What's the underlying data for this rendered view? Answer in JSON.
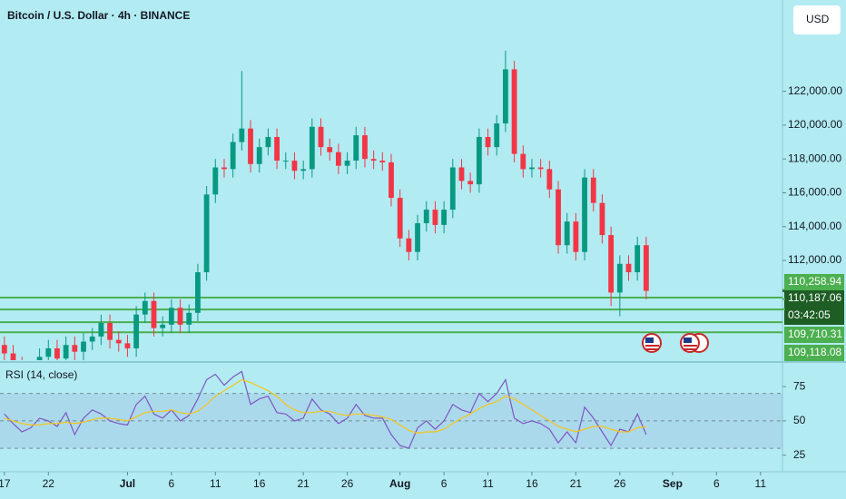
{
  "header": {
    "title": "Bitcoin / U.S. Dollar · 4h · BINANCE",
    "currency_button": "USD"
  },
  "chart_data": [
    {
      "type": "candlestick",
      "x": [
        0,
        1,
        2,
        3,
        4,
        5,
        6,
        7,
        8,
        9,
        10,
        11,
        12,
        13,
        14,
        15,
        16,
        17,
        18,
        19,
        20,
        21,
        22,
        23,
        24,
        25,
        26,
        27,
        28,
        29,
        30,
        31,
        32,
        33,
        34,
        35,
        36,
        37,
        38,
        39,
        40,
        41,
        42,
        43,
        44,
        45,
        46,
        47,
        48,
        49,
        50,
        51,
        52,
        53,
        54,
        55,
        56,
        57,
        58,
        59,
        60,
        61,
        62,
        63,
        64,
        65,
        66,
        67,
        68,
        69,
        70,
        71,
        72,
        73
      ],
      "open": [
        107000,
        106500,
        105800,
        105500,
        105600,
        106300,
        106800,
        106200,
        107000,
        106600,
        107200,
        107500,
        108300,
        107300,
        107100,
        106800,
        108800,
        109600,
        108000,
        108200,
        109200,
        108200,
        108900,
        111300,
        115900,
        117500,
        117400,
        119000,
        119800,
        117700,
        118700,
        119300,
        117900,
        117900,
        117300,
        117400,
        119900,
        118700,
        118400,
        117600,
        117900,
        119400,
        118000,
        117900,
        117800,
        115700,
        113300,
        112500,
        114200,
        115000,
        114100,
        115000,
        117500,
        116700,
        116500,
        119300,
        118700,
        120100,
        123300,
        118300,
        117400,
        117500,
        117400,
        116200,
        112900,
        114300,
        112500,
        116900,
        115400,
        113500,
        110100,
        111800,
        111300,
        112900
      ],
      "high": [
        107500,
        107000,
        106300,
        106100,
        106800,
        107300,
        107300,
        107500,
        107500,
        107700,
        108000,
        108800,
        108800,
        107800,
        107600,
        109300,
        110100,
        110100,
        108700,
        109700,
        109700,
        109400,
        111800,
        116400,
        118000,
        118000,
        119500,
        123200,
        120300,
        119200,
        119800,
        119800,
        118400,
        118400,
        117900,
        120400,
        120400,
        119200,
        118900,
        118400,
        119900,
        119900,
        118500,
        118400,
        118300,
        116200,
        113800,
        114700,
        115500,
        115500,
        115500,
        118000,
        118000,
        117200,
        119800,
        119800,
        120600,
        124400,
        123800,
        118800,
        118000,
        118000,
        117900,
        116700,
        114800,
        114800,
        117400,
        117400,
        115900,
        114000,
        112300,
        112300,
        113400,
        113400
      ],
      "low": [
        106000,
        105300,
        105000,
        105000,
        105100,
        105800,
        105700,
        105700,
        106100,
        106100,
        106700,
        107000,
        106800,
        106600,
        106300,
        106300,
        108300,
        107500,
        107500,
        107700,
        107700,
        107700,
        108400,
        110800,
        115400,
        116900,
        116900,
        118500,
        117200,
        117200,
        118200,
        117400,
        117400,
        116800,
        116800,
        116900,
        118200,
        117900,
        117100,
        117100,
        117400,
        117500,
        117400,
        117300,
        115200,
        112800,
        112000,
        112000,
        113700,
        113600,
        113600,
        114500,
        116200,
        116000,
        116000,
        118200,
        118200,
        119600,
        117800,
        116900,
        116900,
        116900,
        115700,
        112400,
        112400,
        112000,
        112000,
        114900,
        113000,
        109300,
        108700,
        110800,
        110800,
        109700
      ],
      "close": [
        106500,
        105800,
        105500,
        105600,
        106300,
        106800,
        106200,
        107000,
        106600,
        107200,
        107500,
        108300,
        107300,
        107100,
        106800,
        108800,
        109600,
        108000,
        108200,
        109200,
        108200,
        108900,
        111300,
        115900,
        117500,
        117400,
        119000,
        119800,
        117700,
        118700,
        119300,
        117900,
        117900,
        117300,
        117400,
        119900,
        118700,
        118400,
        117600,
        117900,
        119400,
        118000,
        117900,
        117800,
        115700,
        113300,
        112500,
        114200,
        115000,
        114100,
        115000,
        117500,
        116700,
        116500,
        119300,
        118700,
        120100,
        123300,
        118300,
        117400,
        117500,
        117400,
        116200,
        112900,
        114300,
        112500,
        116900,
        115400,
        113500,
        110100,
        111800,
        111300,
        112900,
        110200
      ],
      "up_color": "#089981",
      "down_color": "#f23645",
      "xlim": [
        -0.5,
        88.5
      ],
      "xticks": [
        {
          "value": 0,
          "label": "17"
        },
        {
          "value": 5,
          "label": "22"
        },
        {
          "value": 14,
          "label": "Jul"
        },
        {
          "value": 19,
          "label": "6"
        },
        {
          "value": 24,
          "label": "11"
        },
        {
          "value": 29,
          "label": "16"
        },
        {
          "value": 34,
          "label": "21"
        },
        {
          "value": 39,
          "label": "26"
        },
        {
          "value": 45,
          "label": "Aug"
        },
        {
          "value": 50,
          "label": "6"
        },
        {
          "value": 55,
          "label": "11"
        },
        {
          "value": 60,
          "label": "16"
        },
        {
          "value": 65,
          "label": "21"
        },
        {
          "value": 70,
          "label": "26"
        },
        {
          "value": 76,
          "label": "Sep"
        },
        {
          "value": 81,
          "label": "6"
        },
        {
          "value": 86,
          "label": "11"
        }
      ],
      "ylim": [
        106100,
        127400
      ],
      "yticks": [
        {
          "value": 112000,
          "label": "112,000.00"
        },
        {
          "value": 114000,
          "label": "114,000.00"
        },
        {
          "value": 116000,
          "label": "116,000.00"
        },
        {
          "value": 118000,
          "label": "118,000.00"
        },
        {
          "value": 120000,
          "label": "120,000.00"
        },
        {
          "value": 122000,
          "label": "122,000.00"
        }
      ],
      "hlines": {
        "values": [
          109800,
          109100,
          108350,
          107750
        ],
        "color": "#4caf50"
      },
      "price_tags": [
        {
          "value": 110258.94,
          "label": "110,258.94",
          "color": "#4caf50"
        },
        {
          "value": 110187.06,
          "label": "110,187.06",
          "color": "#1e5e25",
          "countdown": "03:42:05"
        },
        {
          "value": 109710.31,
          "label": "109,710.31",
          "color": "#4caf50"
        },
        {
          "value": 109118.08,
          "label": "109,118.08",
          "color": "#4caf50"
        }
      ]
    },
    {
      "type": "line",
      "title": "RSI (14, close)",
      "x": [
        0,
        1,
        2,
        3,
        4,
        5,
        6,
        7,
        8,
        9,
        10,
        11,
        12,
        13,
        14,
        15,
        16,
        17,
        18,
        19,
        20,
        21,
        22,
        23,
        24,
        25,
        26,
        27,
        28,
        29,
        30,
        31,
        32,
        33,
        34,
        35,
        36,
        37,
        38,
        39,
        40,
        41,
        42,
        43,
        44,
        45,
        46,
        47,
        48,
        49,
        50,
        51,
        52,
        53,
        54,
        55,
        56,
        57,
        58,
        59,
        60,
        61,
        62,
        63,
        64,
        65,
        66,
        67,
        68,
        69,
        70,
        71,
        72,
        73
      ],
      "xlim": [
        -0.5,
        88.5
      ],
      "ylim": [
        12.9,
        91.6
      ],
      "yticks": [
        25,
        50,
        75
      ],
      "levels": [
        30,
        50,
        70
      ],
      "band_color": "#7e57c2",
      "series": [
        {
          "color": "#7e57c2",
          "values": [
            55,
            48,
            42,
            45,
            52,
            50,
            46,
            56,
            40,
            52,
            58,
            55,
            50,
            48,
            47,
            62,
            68,
            55,
            52,
            58,
            50,
            54,
            66,
            80,
            84,
            76,
            82,
            86,
            62,
            66,
            68,
            56,
            55,
            50,
            52,
            66,
            58,
            55,
            48,
            52,
            62,
            54,
            52,
            52,
            40,
            32,
            30,
            45,
            50,
            44,
            50,
            62,
            58,
            56,
            70,
            64,
            70,
            80,
            52,
            48,
            50,
            48,
            44,
            34,
            42,
            34,
            60,
            52,
            42,
            32,
            44,
            42,
            55,
            40
          ]
        },
        {
          "color": "#f5c518",
          "values": [
            52,
            50,
            48,
            47,
            47,
            48,
            48,
            49,
            48,
            49,
            51,
            52,
            52,
            51,
            50,
            53,
            56,
            57,
            57,
            58,
            56,
            55,
            57,
            62,
            68,
            72,
            76,
            80,
            78,
            75,
            72,
            68,
            62,
            58,
            56,
            56,
            57,
            57,
            55,
            54,
            55,
            55,
            54,
            53,
            51,
            47,
            43,
            41,
            42,
            42,
            44,
            48,
            52,
            55,
            59,
            62,
            64,
            68,
            66,
            62,
            58,
            54,
            50,
            46,
            44,
            42,
            44,
            46,
            46,
            44,
            42,
            42,
            45,
            46
          ]
        }
      ]
    }
  ]
}
